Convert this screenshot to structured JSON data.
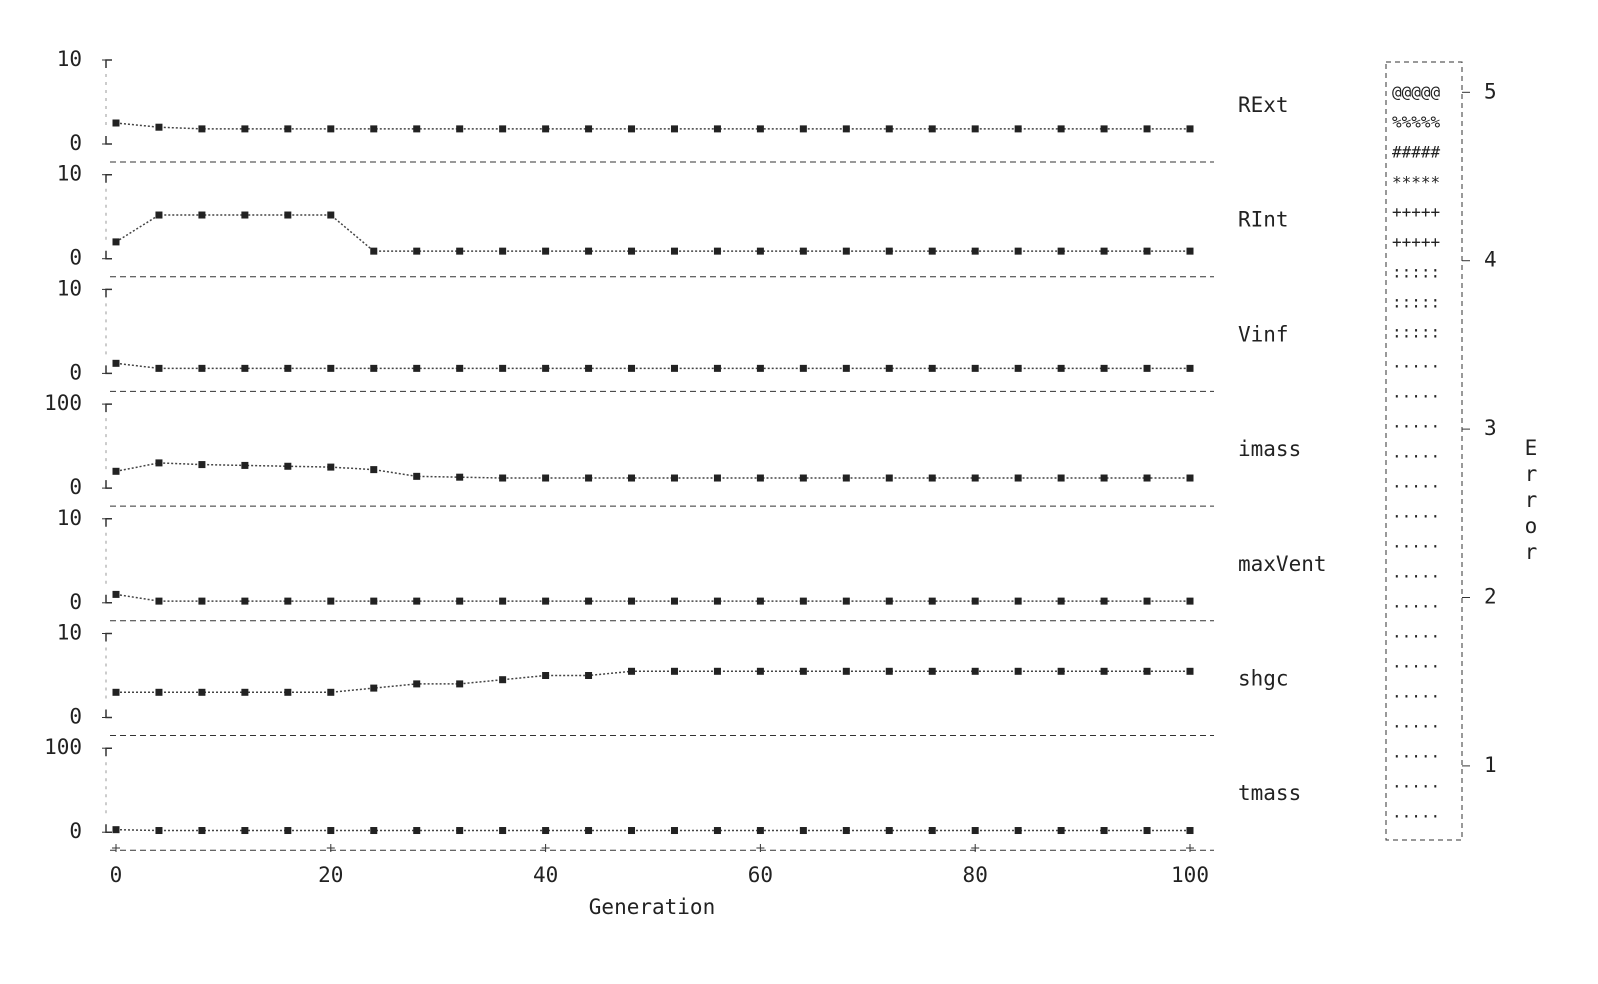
{
  "chart_data": {
    "type": "ascii-panels",
    "xlabel": "Generation",
    "xlim": [
      0,
      100
    ],
    "xticks": [
      0,
      20,
      40,
      60,
      80,
      100
    ],
    "x": [
      0,
      4,
      8,
      12,
      16,
      20,
      24,
      28,
      32,
      36,
      40,
      44,
      48,
      52,
      56,
      60,
      64,
      68,
      72,
      76,
      80,
      84,
      88,
      92,
      96,
      100
    ],
    "panels": [
      {
        "label": "RExt",
        "ylim": [
          0,
          10
        ],
        "yticks": [
          0,
          10
        ],
        "values": [
          2.5,
          2,
          1.8,
          1.8,
          1.8,
          1.8,
          1.8,
          1.8,
          1.8,
          1.8,
          1.8,
          1.8,
          1.8,
          1.8,
          1.8,
          1.8,
          1.8,
          1.8,
          1.8,
          1.8,
          1.8,
          1.8,
          1.8,
          1.8,
          1.8,
          1.8
        ]
      },
      {
        "label": "RInt",
        "ylim": [
          0,
          10
        ],
        "yticks": [
          0,
          10
        ],
        "values": [
          2,
          5.2,
          5.2,
          5.2,
          5.2,
          5.2,
          0.9,
          0.9,
          0.9,
          0.9,
          0.9,
          0.9,
          0.9,
          0.9,
          0.9,
          0.9,
          0.9,
          0.9,
          0.9,
          0.9,
          0.9,
          0.9,
          0.9,
          0.9,
          0.9,
          0.9
        ]
      },
      {
        "label": "Vinf",
        "ylim": [
          0,
          10
        ],
        "yticks": [
          0,
          10
        ],
        "values": [
          1.2,
          0.6,
          0.6,
          0.6,
          0.6,
          0.6,
          0.6,
          0.6,
          0.6,
          0.6,
          0.6,
          0.6,
          0.6,
          0.6,
          0.6,
          0.6,
          0.6,
          0.6,
          0.6,
          0.6,
          0.6,
          0.6,
          0.6,
          0.6,
          0.6,
          0.6
        ]
      },
      {
        "label": "imass",
        "ylim": [
          0,
          100
        ],
        "yticks": [
          0,
          100
        ],
        "values": [
          20,
          30,
          28,
          27,
          26,
          25,
          22,
          14,
          13,
          12,
          12,
          12,
          12,
          12,
          12,
          12,
          12,
          12,
          12,
          12,
          12,
          12,
          12,
          12,
          12,
          12
        ]
      },
      {
        "label": "maxVent",
        "ylim": [
          0,
          10
        ],
        "yticks": [
          0,
          10
        ],
        "values": [
          1,
          0.2,
          0.2,
          0.2,
          0.2,
          0.2,
          0.2,
          0.2,
          0.2,
          0.2,
          0.2,
          0.2,
          0.2,
          0.2,
          0.2,
          0.2,
          0.2,
          0.2,
          0.2,
          0.2,
          0.2,
          0.2,
          0.2,
          0.2,
          0.2,
          0.2
        ]
      },
      {
        "label": "shgc",
        "ylim": [
          0,
          10
        ],
        "yticks": [
          0,
          10
        ],
        "values": [
          3,
          3,
          3,
          3,
          3,
          3,
          3.5,
          4,
          4,
          4.5,
          5,
          5,
          5.5,
          5.5,
          5.5,
          5.5,
          5.5,
          5.5,
          5.5,
          5.5,
          5.5,
          5.5,
          5.5,
          5.5,
          5.5,
          5.5
        ]
      },
      {
        "label": "tmass",
        "ylim": [
          0,
          100
        ],
        "yticks": [
          0,
          100
        ],
        "values": [
          3,
          2,
          2,
          2,
          2,
          2,
          2,
          2,
          2,
          2,
          2,
          2,
          2,
          2,
          2,
          2,
          2,
          2,
          2,
          2,
          2,
          2,
          2,
          2,
          2,
          2
        ]
      }
    ],
    "colorbar": {
      "label": "Error",
      "ylim": [
        0.56,
        5.18
      ],
      "yticks": [
        1,
        2,
        3,
        4,
        5
      ],
      "symbols": [
        "@@@@@",
        "%%%%%",
        "#####",
        "*****",
        "+++++",
        "+++++",
        ":::::",
        ":::::",
        ":::::",
        ".....",
        ".....",
        ".....",
        ".....",
        ".....",
        ".....",
        ".....",
        ".....",
        ".....",
        ".....",
        ".....",
        ".....",
        ".....",
        ".....",
        ".....",
        "....."
      ]
    }
  }
}
